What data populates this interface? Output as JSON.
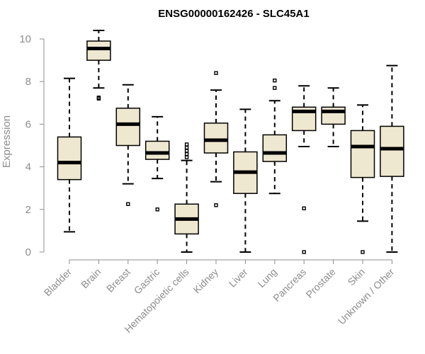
{
  "chart_data": {
    "type": "box",
    "title": "ENSG00000162426 - SLC45A1",
    "xlabel": "",
    "ylabel": "Expression",
    "ylim": [
      0,
      10
    ],
    "yticks": [
      0,
      2,
      4,
      6,
      8,
      10
    ],
    "box_fill": "#efe8d0",
    "categories": [
      "Bladder",
      "Brain",
      "Breast",
      "Gastric",
      "Hematopoietic cells",
      "Kidney",
      "Liver",
      "Lung",
      "Pancreas",
      "Prostate",
      "Skin",
      "Unknown / Other"
    ],
    "boxes": [
      {
        "name": "Bladder",
        "whisker_low": 0.95,
        "q1": 3.4,
        "median": 4.2,
        "q3": 5.4,
        "whisker_high": 8.15,
        "outliers": []
      },
      {
        "name": "Brain",
        "whisker_low": 7.7,
        "q1": 9.0,
        "median": 9.55,
        "q3": 9.9,
        "whisker_high": 10.4,
        "outliers": [
          7.2,
          7.25
        ]
      },
      {
        "name": "Breast",
        "whisker_low": 3.2,
        "q1": 5.0,
        "median": 6.0,
        "q3": 6.75,
        "whisker_high": 7.85,
        "outliers": [
          2.25
        ]
      },
      {
        "name": "Gastric",
        "whisker_low": 3.45,
        "q1": 4.35,
        "median": 4.65,
        "q3": 5.2,
        "whisker_high": 6.35,
        "outliers": [
          2.0
        ]
      },
      {
        "name": "Hematopoietic cells",
        "whisker_low": 0.0,
        "q1": 0.85,
        "median": 1.55,
        "q3": 2.25,
        "whisker_high": 4.3,
        "outliers": [
          4.45,
          4.6,
          4.75,
          4.9,
          5.05
        ]
      },
      {
        "name": "Kidney",
        "whisker_low": 3.3,
        "q1": 4.65,
        "median": 5.25,
        "q3": 6.05,
        "whisker_high": 7.6,
        "outliers": [
          2.2,
          8.4
        ]
      },
      {
        "name": "Liver",
        "whisker_low": 0.0,
        "q1": 2.75,
        "median": 3.75,
        "q3": 4.7,
        "whisker_high": 6.7,
        "outliers": []
      },
      {
        "name": "Lung",
        "whisker_low": 2.75,
        "q1": 4.25,
        "median": 4.65,
        "q3": 5.5,
        "whisker_high": 7.1,
        "outliers": [
          7.7,
          8.05
        ]
      },
      {
        "name": "Pancreas",
        "whisker_low": 4.95,
        "q1": 5.7,
        "median": 6.6,
        "q3": 6.8,
        "whisker_high": 7.8,
        "outliers": [
          0.0,
          2.05
        ]
      },
      {
        "name": "Prostate",
        "whisker_low": 4.95,
        "q1": 6.0,
        "median": 6.6,
        "q3": 6.8,
        "whisker_high": 7.7,
        "outliers": []
      },
      {
        "name": "Skin",
        "whisker_low": 1.45,
        "q1": 3.5,
        "median": 4.95,
        "q3": 5.7,
        "whisker_high": 6.9,
        "outliers": [
          0.0
        ]
      },
      {
        "name": "Unknown / Other",
        "whisker_low": 0.0,
        "q1": 3.55,
        "median": 4.85,
        "q3": 5.9,
        "whisker_high": 8.75,
        "outliers": []
      }
    ]
  }
}
